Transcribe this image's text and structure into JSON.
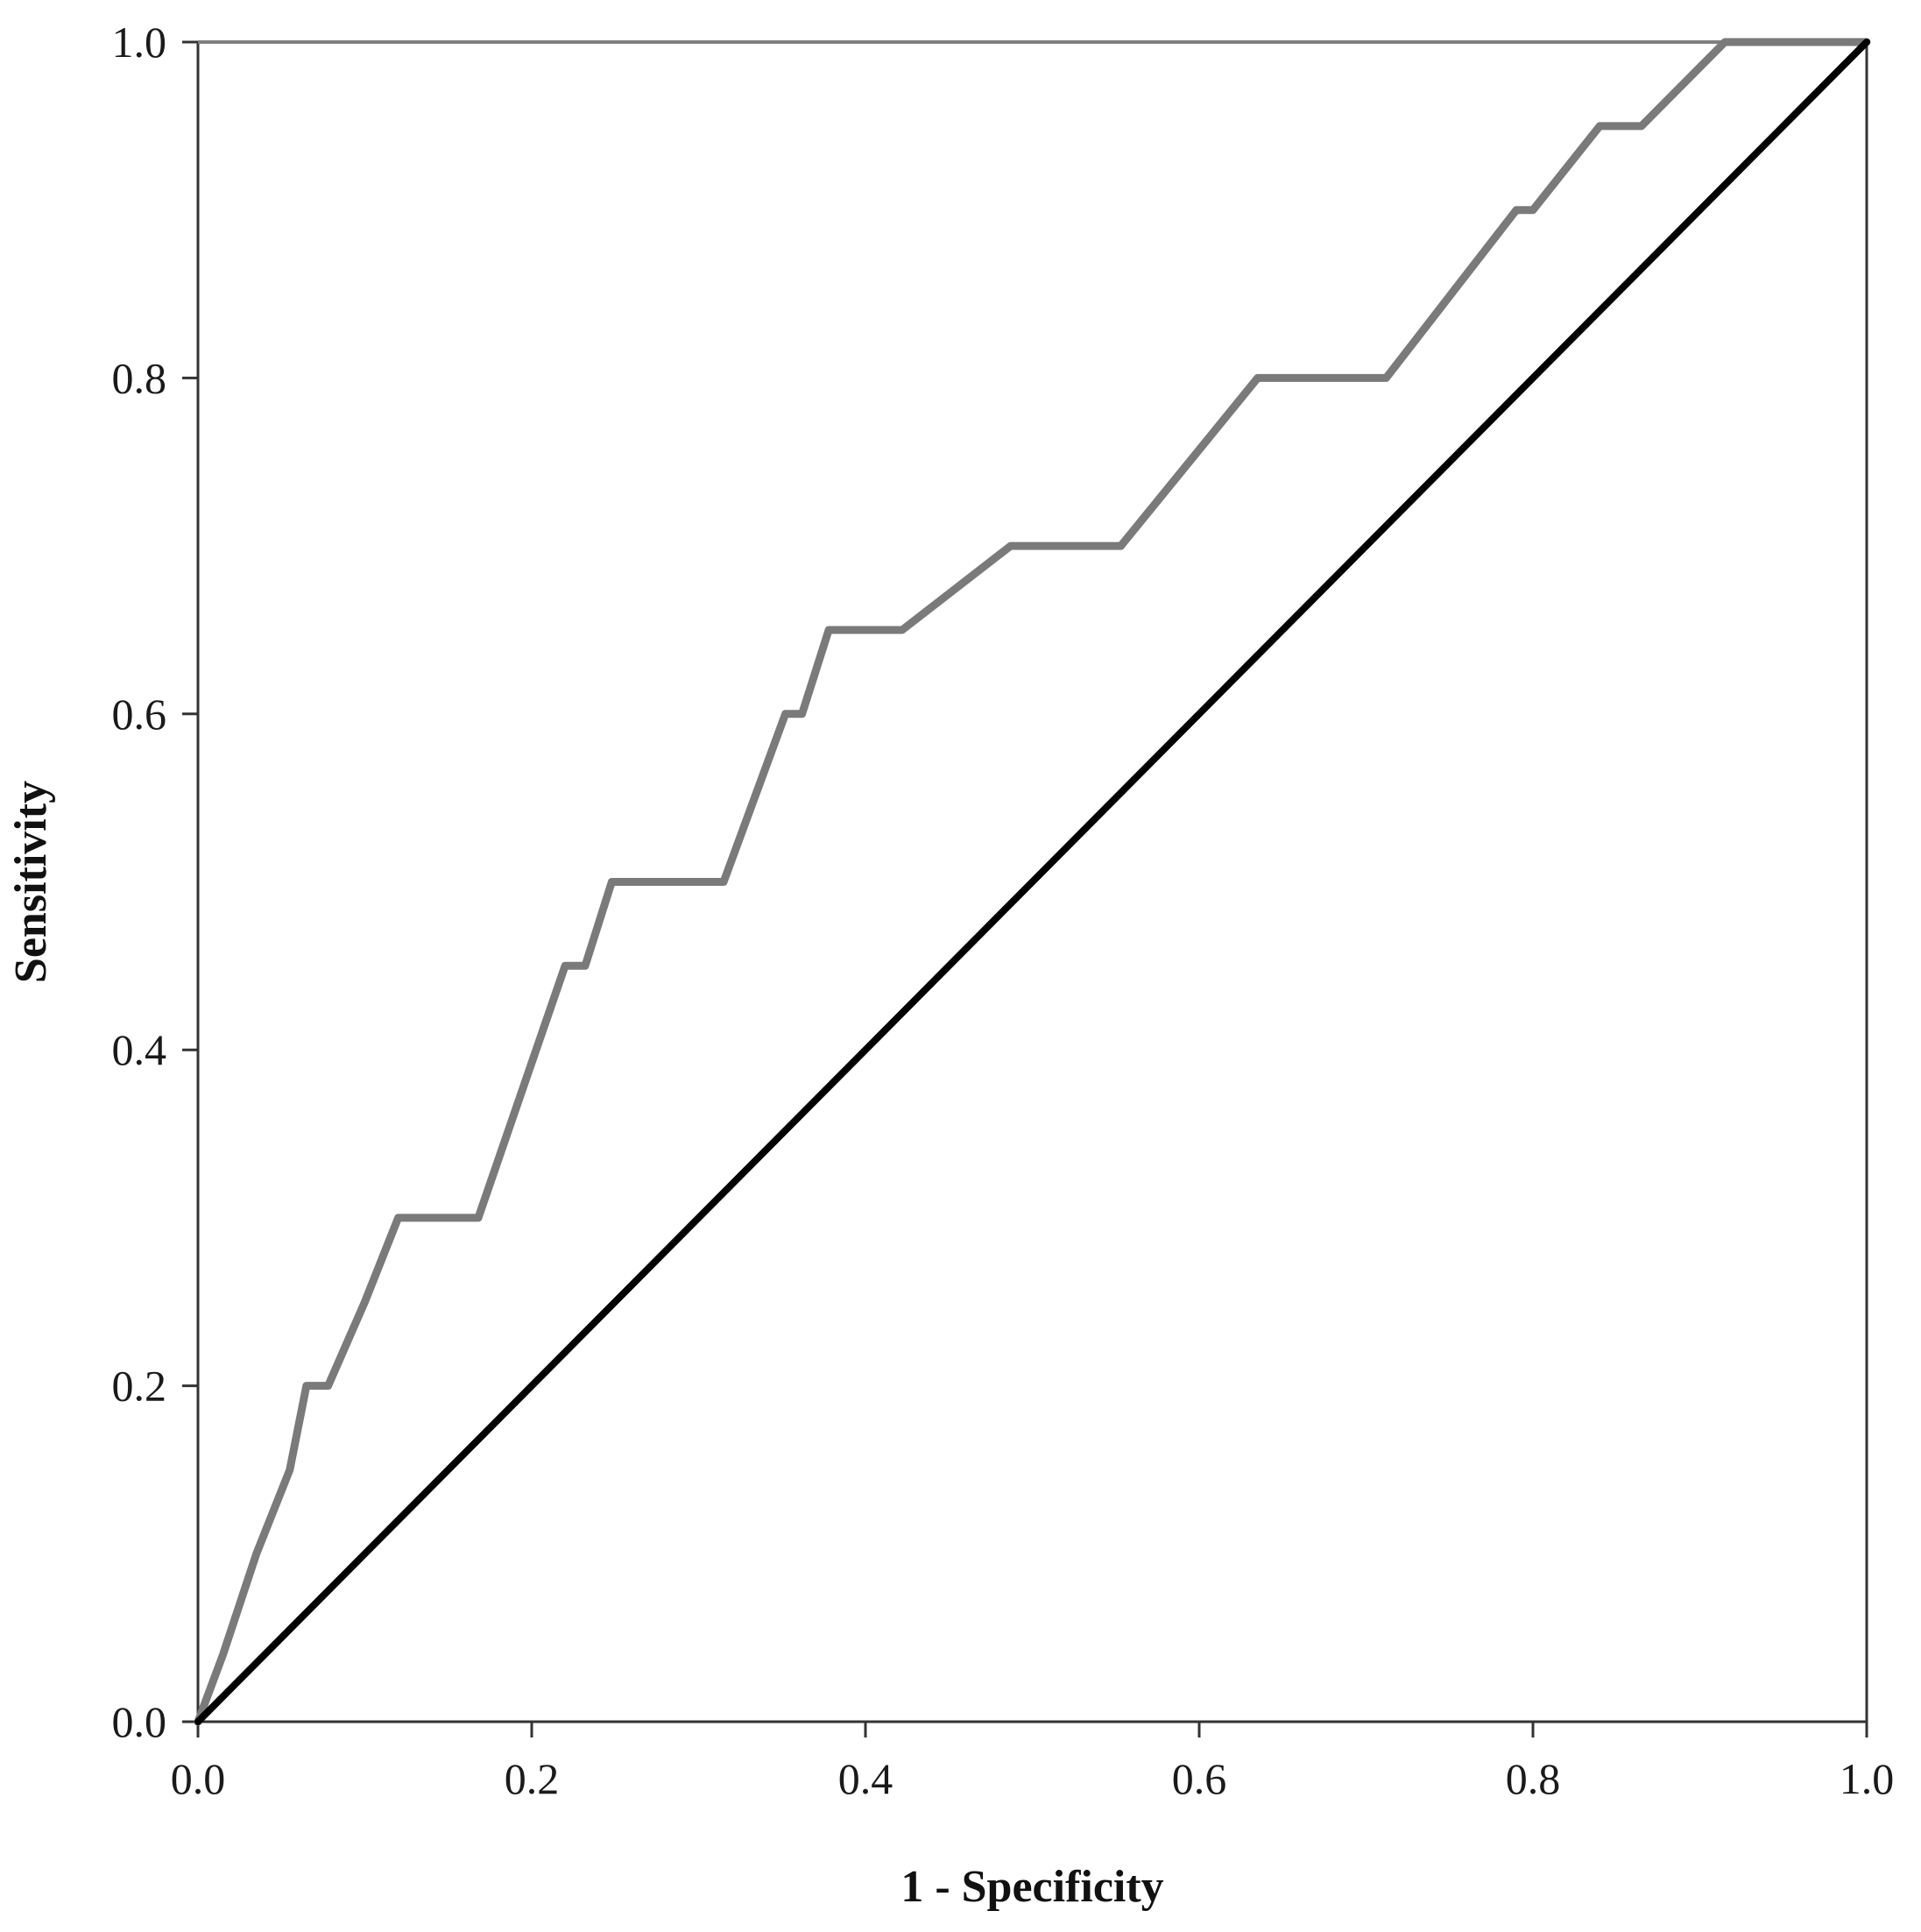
{
  "chart_data": {
    "type": "line",
    "title": "",
    "xlabel": "1 - Specificity",
    "ylabel": "Sensitivity",
    "xlim": [
      0,
      1
    ],
    "ylim": [
      0,
      1
    ],
    "x_ticks": [
      "0.0",
      "0.2",
      "0.4",
      "0.6",
      "0.8",
      "1.0"
    ],
    "y_ticks": [
      "0.0",
      "0.2",
      "0.4",
      "0.6",
      "0.8",
      "1.0"
    ],
    "grid": false,
    "legend": "none",
    "series": [
      {
        "color": "#7a7a7a",
        "points": [
          [
            0.0,
            0.0
          ],
          [
            0.015,
            0.04
          ],
          [
            0.035,
            0.1
          ],
          [
            0.055,
            0.15
          ],
          [
            0.065,
            0.2
          ],
          [
            0.078,
            0.2
          ],
          [
            0.1,
            0.25
          ],
          [
            0.12,
            0.3
          ],
          [
            0.168,
            0.3
          ],
          [
            0.22,
            0.45
          ],
          [
            0.232,
            0.45
          ],
          [
            0.248,
            0.5
          ],
          [
            0.315,
            0.5
          ],
          [
            0.352,
            0.6
          ],
          [
            0.362,
            0.6
          ],
          [
            0.378,
            0.65
          ],
          [
            0.422,
            0.65
          ],
          [
            0.487,
            0.7
          ],
          [
            0.553,
            0.7
          ],
          [
            0.635,
            0.8
          ],
          [
            0.712,
            0.8
          ],
          [
            0.79,
            0.9
          ],
          [
            0.8,
            0.9
          ],
          [
            0.84,
            0.95
          ],
          [
            0.865,
            0.95
          ],
          [
            0.915,
            1.0
          ],
          [
            1.0,
            1.0
          ]
        ]
      },
      {
        "color": "#000000",
        "points": [
          [
            0.0,
            0.0
          ],
          [
            1.0,
            1.0
          ]
        ]
      }
    ]
  }
}
